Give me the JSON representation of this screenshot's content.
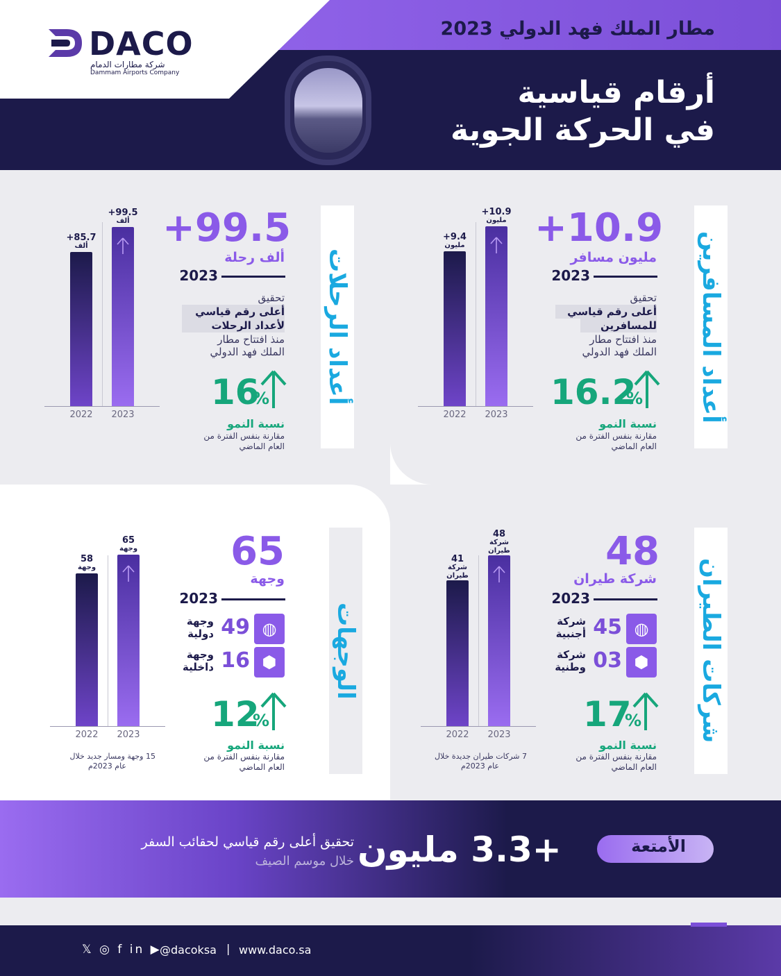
{
  "header": {
    "brand": "DACO",
    "brand_ar": "شركة مطارات الدمام",
    "brand_en": "Dammam Airports Company",
    "airport_title": "مطار الملك فهد الدولي 2023",
    "title_line1": "أرقام قياسية",
    "title_line2": "في الحركة الجوية"
  },
  "passengers": {
    "vtitle": "أعداد المسافرين",
    "big": "+10.9",
    "unit": "مليون مسافر",
    "year": "2023",
    "ach1": "تحقيق",
    "ach2": "أعلى رقم قياسي",
    "ach3": "للمسافرين",
    "since1": "منذ افتتاح مطار",
    "since2": "الملك فهد الدولي",
    "growth": "16.2",
    "pct": "%",
    "growth_label": "نسبة النمو",
    "growth_sub1": "مقارنة بنفس الفترة من",
    "growth_sub2": "العام الماضي",
    "chart_data": {
      "type": "bar",
      "categories": [
        "2022",
        "2023"
      ],
      "values": [
        9.4,
        10.9
      ],
      "labels": [
        "+9.4",
        "+10.9"
      ],
      "unit": "مليون",
      "ylim": [
        0,
        12
      ]
    }
  },
  "flights": {
    "vtitle": "أعداد الرحلات",
    "big": "+99.5",
    "unit": "ألف رحلة",
    "year": "2023",
    "ach1": "تحقيق",
    "ach2": "أعلى رقم قياسي",
    "ach3": "لأعداد الرحلات",
    "since1": "منذ افتتاح مطار",
    "since2": "الملك فهد الدولي",
    "growth": "16",
    "pct": "%",
    "growth_label": "نسبة النمو",
    "growth_sub1": "مقارنة بنفس الفترة من",
    "growth_sub2": "العام الماضي",
    "chart_data": {
      "type": "bar",
      "categories": [
        "2022",
        "2023"
      ],
      "values": [
        85.7,
        99.5
      ],
      "labels": [
        "+85.7",
        "+99.5"
      ],
      "unit": "ألف",
      "ylim": [
        0,
        110
      ]
    }
  },
  "airlines": {
    "vtitle": "شركات الطيران",
    "big": "48",
    "unit": "شركة طيران",
    "year": "2023",
    "s1_num": "45",
    "s1_l1": "شركة",
    "s1_l2": "أجنبية",
    "s2_num": "03",
    "s2_l1": "شركة",
    "s2_l2": "وطنية",
    "growth": "17",
    "pct": "%",
    "growth_label": "نسبة النمو",
    "growth_sub1": "مقارنة بنفس الفترة من",
    "growth_sub2": "العام الماضي",
    "note1": "7 شركات طيران جديدة خلال",
    "note2": "عام 2023م",
    "chart_data": {
      "type": "bar",
      "categories": [
        "2022",
        "2023"
      ],
      "values": [
        41,
        48
      ],
      "labels": [
        "41",
        "48"
      ],
      "unit": "شركة طيران",
      "ylim": [
        0,
        52
      ]
    }
  },
  "destinations": {
    "vtitle": "الوجهات",
    "big": "65",
    "unit": "وجهة",
    "year": "2023",
    "s1_num": "49",
    "s1_l1": "وجهة",
    "s1_l2": "دولية",
    "s2_num": "16",
    "s2_l1": "وجهة",
    "s2_l2": "داخلية",
    "growth": "12",
    "pct": "%",
    "growth_label": "نسبة النمو",
    "growth_sub1": "مقارنة بنفس الفترة من",
    "growth_sub2": "العام الماضي",
    "note1": "15 وجهة ومسار جديد خلال",
    "note2": "عام 2023م",
    "chart_data": {
      "type": "bar",
      "categories": [
        "2022",
        "2023"
      ],
      "values": [
        58,
        65
      ],
      "labels": [
        "58",
        "65"
      ],
      "unit": "وجهة",
      "ylim": [
        0,
        70
      ]
    }
  },
  "baggage": {
    "label": "الأمتعة",
    "number": "+3.3 مليون",
    "line1": "تحقيق أعلى رقم قياسي لحقائب السفر",
    "line2": "خلال موسم الصيف"
  },
  "footer": {
    "icons": "𝕏 ◎ f in ▶",
    "handle": "@dacoksa",
    "sep": "|",
    "website": "www.daco.sa"
  },
  "colors": {
    "navy": "#1c1a4a",
    "purple": "#8a5ae8",
    "green": "#16a67b",
    "cyan": "#1aa9e0"
  }
}
